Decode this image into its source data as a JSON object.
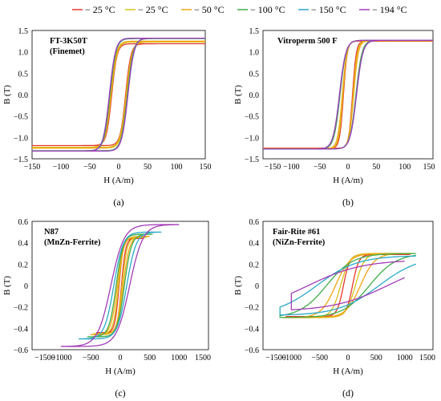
{
  "legend": {
    "position": "top",
    "entries": [
      {
        "label": "− 25 °C",
        "color": "#e8382b"
      },
      {
        "label": "− 25 °C",
        "color": "#d6c21a"
      },
      {
        "label": "− 50 °C",
        "color": "#f2a413"
      },
      {
        "label": "− 100 °C",
        "color": "#3fae49"
      },
      {
        "label": "− 150 °C",
        "color": "#2aa9c8"
      },
      {
        "label": "− 194 °C",
        "color": "#a43cb8"
      }
    ]
  },
  "chart_data": [
    {
      "type": "line",
      "panel_label": "(a)",
      "annotation": [
        "FT-3K50T",
        "(Finemet)"
      ],
      "xlabel": "H (A/m)",
      "ylabel": "B (T)",
      "xlim": [
        -150,
        150
      ],
      "ylim": [
        -1.5,
        1.5
      ],
      "xticks": [
        "−150",
        "−100",
        "−50",
        "0",
        "50",
        "100",
        "150"
      ],
      "yticks": [
        "1.5",
        "1.0",
        "0.5",
        "0.0",
        "−0.5",
        "−1.0",
        "−1.5"
      ],
      "grid": false,
      "loop_points": [
        "H_max",
        "B_sat",
        "H_c",
        "B_r"
      ],
      "series": [
        {
          "color": "#e8382b",
          "params": [
            150,
            1.19,
            12,
            1.03
          ]
        },
        {
          "color": "#d6c21a",
          "params": [
            150,
            1.23,
            13,
            1.06
          ]
        },
        {
          "color": "#f2a413",
          "params": [
            150,
            1.25,
            14,
            1.1
          ]
        },
        {
          "color": "#3fae49",
          "params": [
            150,
            1.31,
            15,
            1.17
          ]
        },
        {
          "color": "#2aa9c8",
          "params": [
            150,
            1.32,
            16,
            1.19
          ]
        },
        {
          "color": "#a43cb8",
          "params": [
            150,
            1.32,
            16,
            1.2
          ]
        }
      ]
    },
    {
      "type": "line",
      "panel_label": "(b)",
      "annotation": [
        "Vitroperm 500 F"
      ],
      "xlabel": "H (A/m)",
      "ylabel": "B (T)",
      "xlim": [
        -150,
        150
      ],
      "ylim": [
        -1.5,
        1.5
      ],
      "xticks": [
        "−150",
        "−100",
        "−50",
        "0",
        "50",
        "100",
        "150"
      ],
      "yticks": [
        "1.5",
        "1.0",
        "0.5",
        "0.0",
        "−0.5",
        "−1.0",
        "−1.5"
      ],
      "grid": false,
      "loop_points": [
        "H_max",
        "B_sat",
        "H_c",
        "B_r"
      ],
      "series": [
        {
          "color": "#e8382b",
          "params": [
            150,
            1.25,
            8,
            1.05
          ]
        },
        {
          "color": "#d6c21a",
          "params": [
            150,
            1.26,
            9,
            1.06
          ]
        },
        {
          "color": "#f2a413",
          "params": [
            150,
            1.26,
            10,
            1.07
          ]
        },
        {
          "color": "#3fae49",
          "params": [
            150,
            1.27,
            14,
            1.1
          ]
        },
        {
          "color": "#2aa9c8",
          "params": [
            150,
            1.27,
            15,
            1.11
          ]
        },
        {
          "color": "#a43cb8",
          "params": [
            150,
            1.27,
            15,
            1.11
          ]
        }
      ]
    },
    {
      "type": "line",
      "panel_label": "(c)",
      "annotation": [
        "N87",
        "(MnZn-Ferrite)"
      ],
      "xlabel": "H (A/m)",
      "ylabel": "B (T)",
      "xlim": [
        -1500,
        1500
      ],
      "ylim": [
        -0.6,
        0.6
      ],
      "xticks": [
        "−1500",
        "−1000",
        "−500",
        "0",
        "500",
        "1000",
        "1500"
      ],
      "yticks": [
        "0.6",
        "0.4",
        "0.2",
        "0",
        "−0.2",
        "−0.4",
        "−0.6"
      ],
      "grid": false,
      "loop_points": [
        "H_max",
        "B_sat",
        "H_c",
        "B_r"
      ],
      "series": [
        {
          "color": "#e8382b",
          "params": [
            400,
            0.44,
            20,
            0.12
          ]
        },
        {
          "color": "#d6c21a",
          "params": [
            450,
            0.45,
            30,
            0.15
          ]
        },
        {
          "color": "#f2a413",
          "params": [
            500,
            0.46,
            50,
            0.2
          ]
        },
        {
          "color": "#3fae49",
          "params": [
            550,
            0.48,
            70,
            0.25
          ]
        },
        {
          "color": "#2aa9c8",
          "params": [
            700,
            0.5,
            110,
            0.3
          ]
        },
        {
          "color": "#a43cb8",
          "params": [
            1000,
            0.57,
            160,
            0.35
          ]
        }
      ]
    },
    {
      "type": "line",
      "panel_label": "(d)",
      "annotation": [
        "Fair-Rite #61",
        "(NiZn-Ferrite)"
      ],
      "xlabel": "H (A/m)",
      "ylabel": "B (T)",
      "xlim": [
        -1500,
        1500
      ],
      "ylim": [
        -0.6,
        0.6
      ],
      "xticks": [
        "−1500",
        "−1000",
        "−500",
        "0",
        "500",
        "1000",
        "1500"
      ],
      "yticks": [
        "0.6",
        "0.4",
        "0.2",
        "0",
        "−0.2",
        "−0.4",
        "−0.6"
      ],
      "grid": false,
      "loop_points": [
        "H_max",
        "B_sat",
        "H_c",
        "B_r"
      ],
      "series": [
        {
          "color": "#e8382b",
          "params": [
            1100,
            0.29,
            80,
            0.18
          ]
        },
        {
          "color": "#d6c21a",
          "params": [
            1150,
            0.3,
            130,
            0.2
          ]
        },
        {
          "color": "#f2a413",
          "params": [
            1150,
            0.3,
            220,
            0.21
          ]
        },
        {
          "color": "#3fae49",
          "params": [
            1200,
            0.3,
            380,
            0.2
          ]
        },
        {
          "color": "#2aa9c8",
          "params": [
            1200,
            0.28,
            550,
            0.18
          ]
        },
        {
          "color": "#a43cb8",
          "params": [
            1000,
            0.24,
            700,
            0.15
          ]
        }
      ]
    }
  ]
}
